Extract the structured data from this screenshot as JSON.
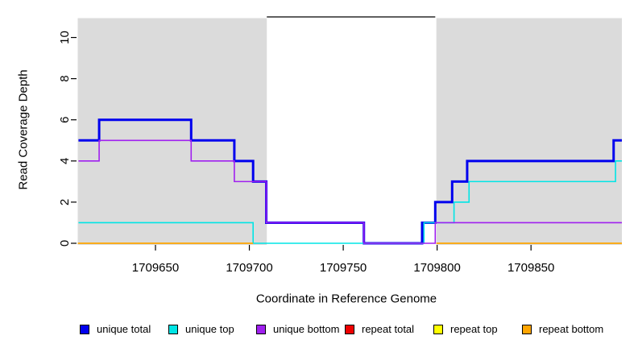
{
  "chart_data": {
    "type": "line",
    "subtype": "step-coverage-plot",
    "title": "",
    "xlabel": "Coordinate in Reference Genome",
    "ylabel": "Read Coverage Depth",
    "xlim": [
      1709608.6,
      1709898.4
    ],
    "ylim": [
      0,
      11
    ],
    "grid": false,
    "x_ticks": [
      1709650,
      1709700,
      1709750,
      1709800,
      1709850
    ],
    "x_tick_labels": [
      "1709650",
      "1709700",
      "1709750",
      "1709800",
      "1709850"
    ],
    "y_ticks": [
      0,
      2,
      4,
      6,
      8,
      10
    ],
    "y_tick_labels": [
      "0",
      "2",
      "4",
      "6",
      "8",
      "10"
    ],
    "shaded_regions": {
      "meaning": "gray shaded intervals",
      "color": "#DBDBDB",
      "ranges": [
        [
          1709608.6,
          1709709.3
        ],
        [
          1709799.6,
          1709898.4
        ]
      ]
    },
    "gap_line": {
      "color": "#000000",
      "y": 11,
      "x0": 1709709.3,
      "x1": 1709799
    },
    "series": [
      {
        "name": "unique total",
        "color": "#0000EE",
        "width": 3,
        "steps": [
          [
            1709609,
            5
          ],
          [
            1709620,
            6
          ],
          [
            1709669,
            5
          ],
          [
            1709692,
            4
          ],
          [
            1709702,
            3
          ],
          [
            1709709,
            1
          ],
          [
            1709761,
            0
          ],
          [
            1709792,
            1
          ],
          [
            1709799,
            2
          ],
          [
            1709808,
            3
          ],
          [
            1709816,
            4
          ],
          [
            1709894,
            5
          ]
        ],
        "x_end": 1709898.4
      },
      {
        "name": "unique top",
        "color": "#00E5E5",
        "width": 1.6,
        "steps": [
          [
            1709609,
            1
          ],
          [
            1709702,
            0
          ],
          [
            1709793,
            1
          ],
          [
            1709809,
            2
          ],
          [
            1709817,
            3
          ],
          [
            1709895,
            4
          ]
        ],
        "x_end": 1709898.4
      },
      {
        "name": "unique bottom",
        "color": "#A020F0",
        "width": 1.6,
        "steps": [
          [
            1709609,
            4
          ],
          [
            1709620,
            5
          ],
          [
            1709669,
            4
          ],
          [
            1709692,
            3
          ],
          [
            1709709,
            1
          ],
          [
            1709761,
            0
          ],
          [
            1709799,
            1
          ]
        ],
        "x_end": 1709898.4
      },
      {
        "name": "repeat total",
        "color": "#EE0000",
        "width": 1.6,
        "depth": 0,
        "visible": false
      },
      {
        "name": "repeat top",
        "color": "#FFFF00",
        "width": 1.6,
        "depth": 0,
        "visible": false
      },
      {
        "name": "repeat bottom",
        "color": "#FFA500",
        "width": 1.8,
        "segments": [
          {
            "x0": 1709608.6,
            "x1": 1709702,
            "y": 0
          },
          {
            "x0": 1709799.6,
            "x1": 1709898.4,
            "y": 0
          }
        ]
      }
    ],
    "legend": {
      "position": "bottom",
      "entries": [
        {
          "label": "unique total",
          "color": "#0000EE"
        },
        {
          "label": "unique top",
          "color": "#00E5E5"
        },
        {
          "label": "unique bottom",
          "color": "#A020F0"
        },
        {
          "label": "repeat total",
          "color": "#EE0000"
        },
        {
          "label": "repeat top",
          "color": "#FFFF00"
        },
        {
          "label": "repeat bottom",
          "color": "#FFA500"
        }
      ]
    }
  }
}
